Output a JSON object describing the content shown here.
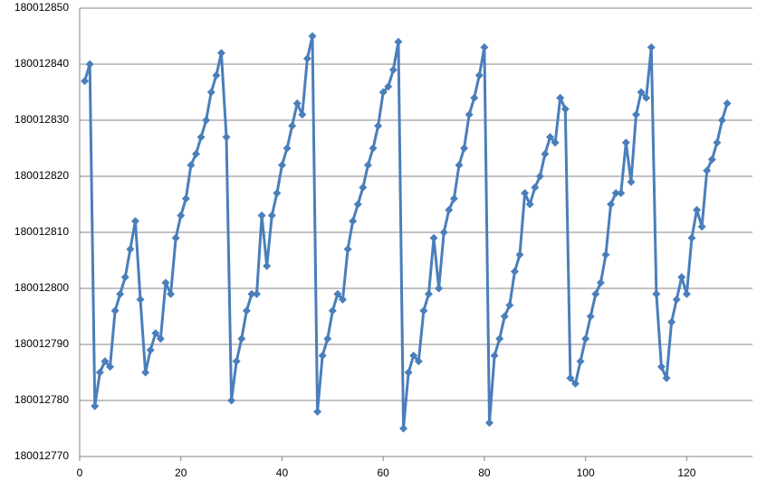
{
  "chart_data": {
    "type": "line",
    "x": [
      1,
      2,
      3,
      4,
      5,
      6,
      7,
      8,
      9,
      10,
      11,
      12,
      13,
      14,
      15,
      16,
      17,
      18,
      19,
      20,
      21,
      22,
      23,
      24,
      25,
      26,
      27,
      28,
      29,
      30,
      31,
      32,
      33,
      34,
      35,
      36,
      37,
      38,
      39,
      40,
      41,
      42,
      43,
      44,
      45,
      46,
      47,
      48,
      49,
      50,
      51,
      52,
      53,
      54,
      55,
      56,
      57,
      58,
      59,
      60,
      61,
      62,
      63,
      64,
      65,
      66,
      67,
      68,
      69,
      70,
      71,
      72,
      73,
      74,
      75,
      76,
      77,
      78,
      79,
      80,
      81,
      82,
      83,
      84,
      85,
      86,
      87,
      88,
      89,
      90,
      91,
      92,
      93,
      94,
      95,
      96,
      97,
      98,
      99,
      100,
      101,
      102,
      103,
      104,
      105,
      106,
      107,
      108,
      109,
      110,
      111,
      112,
      113,
      114,
      115,
      116,
      117,
      118,
      119,
      120,
      121,
      122,
      123,
      124,
      125,
      126,
      127,
      128
    ],
    "series": [
      {
        "color": "#4a7ebb",
        "values": [
          180012837,
          180012840,
          180012779,
          180012785,
          180012787,
          180012786,
          180012796,
          180012799,
          180012802,
          180012807,
          180012812,
          180012798,
          180012785,
          180012789,
          180012792,
          180012791,
          180012801,
          180012799,
          180012809,
          180012813,
          180012816,
          180012822,
          180012824,
          180012827,
          180012830,
          180012835,
          180012838,
          180012842,
          180012827,
          180012780,
          180012787,
          180012791,
          180012796,
          180012799,
          180012799,
          180012813,
          180012804,
          180012813,
          180012817,
          180012822,
          180012825,
          180012829,
          180012833,
          180012831,
          180012841,
          180012845,
          180012778,
          180012788,
          180012791,
          180012796,
          180012799,
          180012798,
          180012807,
          180012812,
          180012815,
          180012818,
          180012822,
          180012825,
          180012829,
          180012835,
          180012836,
          180012839,
          180012844,
          180012775,
          180012785,
          180012788,
          180012787,
          180012796,
          180012799,
          180012809,
          180012800,
          180012810,
          180012814,
          180012816,
          180012822,
          180012825,
          180012831,
          180012834,
          180012838,
          180012843,
          180012776,
          180012788,
          180012791,
          180012795,
          180012797,
          180012803,
          180012806,
          180012817,
          180012815,
          180012818,
          180012820,
          180012824,
          180012827,
          180012826,
          180012834,
          180012832,
          180012784,
          180012783,
          180012787,
          180012791,
          180012795,
          180012799,
          180012801,
          180012806,
          180012815,
          180012817,
          180012817,
          180012826,
          180012819,
          180012831,
          180012835,
          180012834,
          180012843,
          180012799,
          180012786,
          180012784,
          180012794,
          180012798,
          180012802,
          180012799,
          180012809,
          180012814,
          180012811,
          180012821,
          180012823,
          180012826,
          180012830,
          180012833
        ]
      }
    ],
    "xlim": [
      0,
      133
    ],
    "xticks": [
      0,
      20,
      40,
      60,
      80,
      100,
      120
    ],
    "ylim": [
      180012770,
      180012850
    ],
    "yticks": [
      180012770,
      180012780,
      180012790,
      180012800,
      180012810,
      180012820,
      180012830,
      180012840,
      180012850
    ],
    "grid": true
  }
}
